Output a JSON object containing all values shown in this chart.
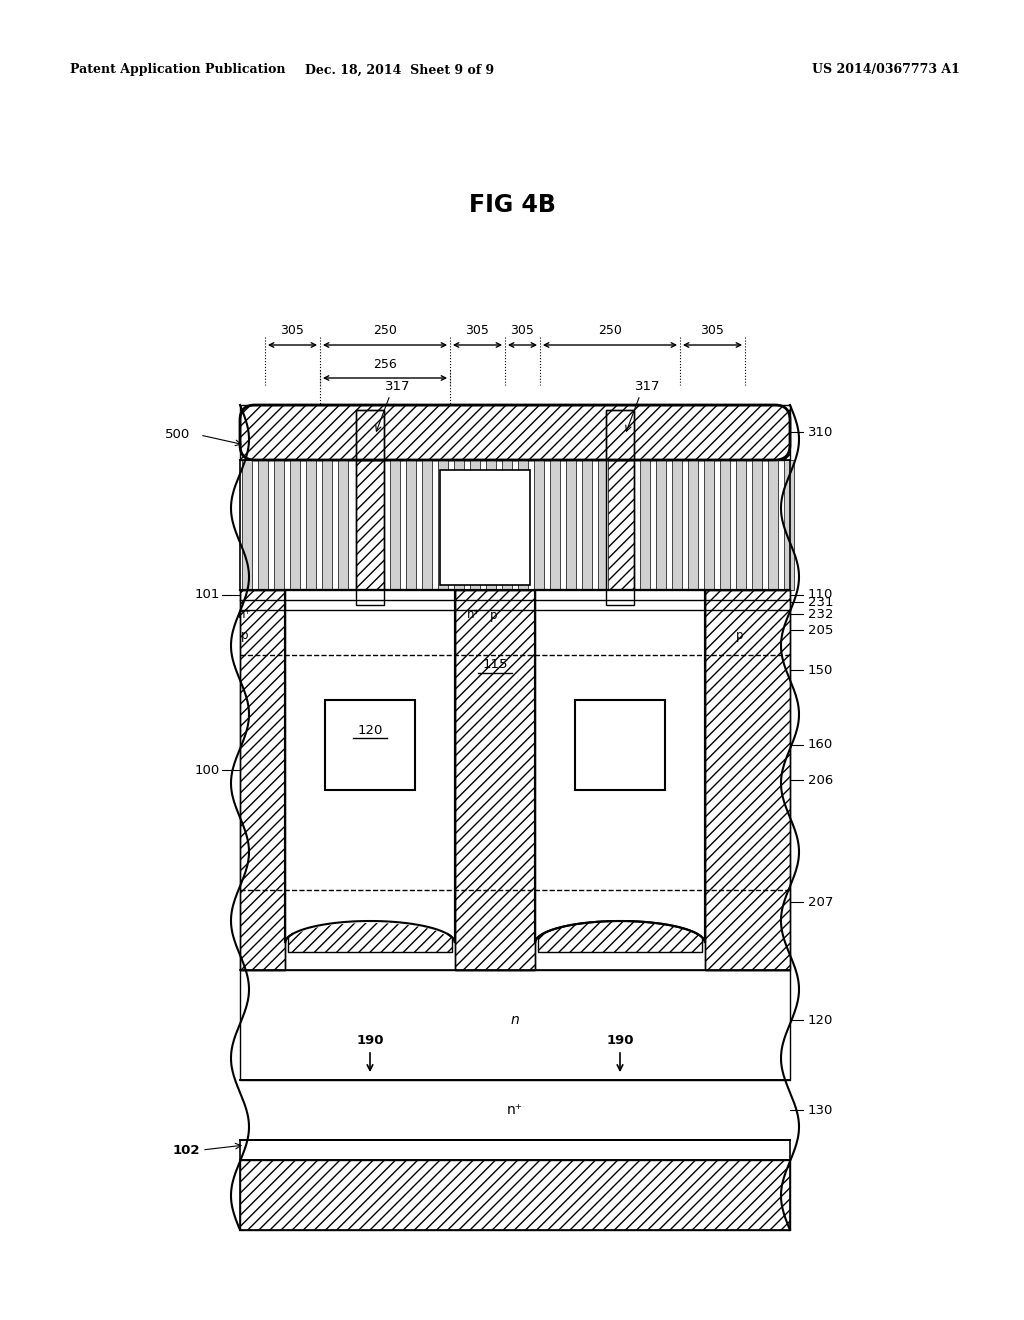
{
  "title": "FIG 4B",
  "header_left": "Patent Application Publication",
  "header_center": "Dec. 18, 2014  Sheet 9 of 9",
  "header_right": "US 2014/0367773 A1",
  "bg_color": "#ffffff"
}
